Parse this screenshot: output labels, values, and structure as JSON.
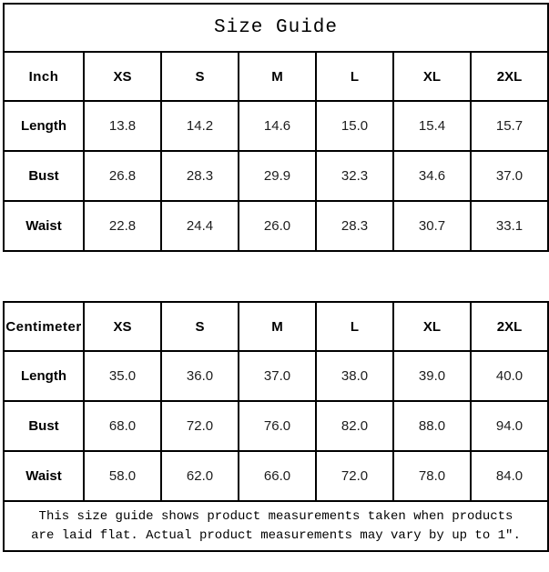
{
  "title": "Size Guide",
  "inch_table": {
    "unit_label": "Inch",
    "sizes": [
      "XS",
      "S",
      "M",
      "L",
      "XL",
      "2XL"
    ],
    "rows": [
      {
        "label": "Length",
        "values": [
          "13.8",
          "14.2",
          "14.6",
          "15.0",
          "15.4",
          "15.7"
        ]
      },
      {
        "label": "Bust",
        "values": [
          "26.8",
          "28.3",
          "29.9",
          "32.3",
          "34.6",
          "37.0"
        ]
      },
      {
        "label": "Waist",
        "values": [
          "22.8",
          "24.4",
          "26.0",
          "28.3",
          "30.7",
          "33.1"
        ]
      }
    ]
  },
  "cm_table": {
    "unit_label": "Centimeter",
    "sizes": [
      "XS",
      "S",
      "M",
      "L",
      "XL",
      "2XL"
    ],
    "rows": [
      {
        "label": "Length",
        "values": [
          "35.0",
          "36.0",
          "37.0",
          "38.0",
          "39.0",
          "40.0"
        ]
      },
      {
        "label": "Bust",
        "values": [
          "68.0",
          "72.0",
          "76.0",
          "82.0",
          "88.0",
          "94.0"
        ]
      },
      {
        "label": "Waist",
        "values": [
          "58.0",
          "62.0",
          "66.0",
          "72.0",
          "78.0",
          "84.0"
        ]
      }
    ]
  },
  "footer_note": {
    "line1": "This size guide shows product measurements taken when products",
    "line2": "are laid flat. Actual product measurements may vary by up to 1″."
  },
  "colors": {
    "border": "#000000",
    "background": "#ffffff",
    "text": "#000000"
  }
}
